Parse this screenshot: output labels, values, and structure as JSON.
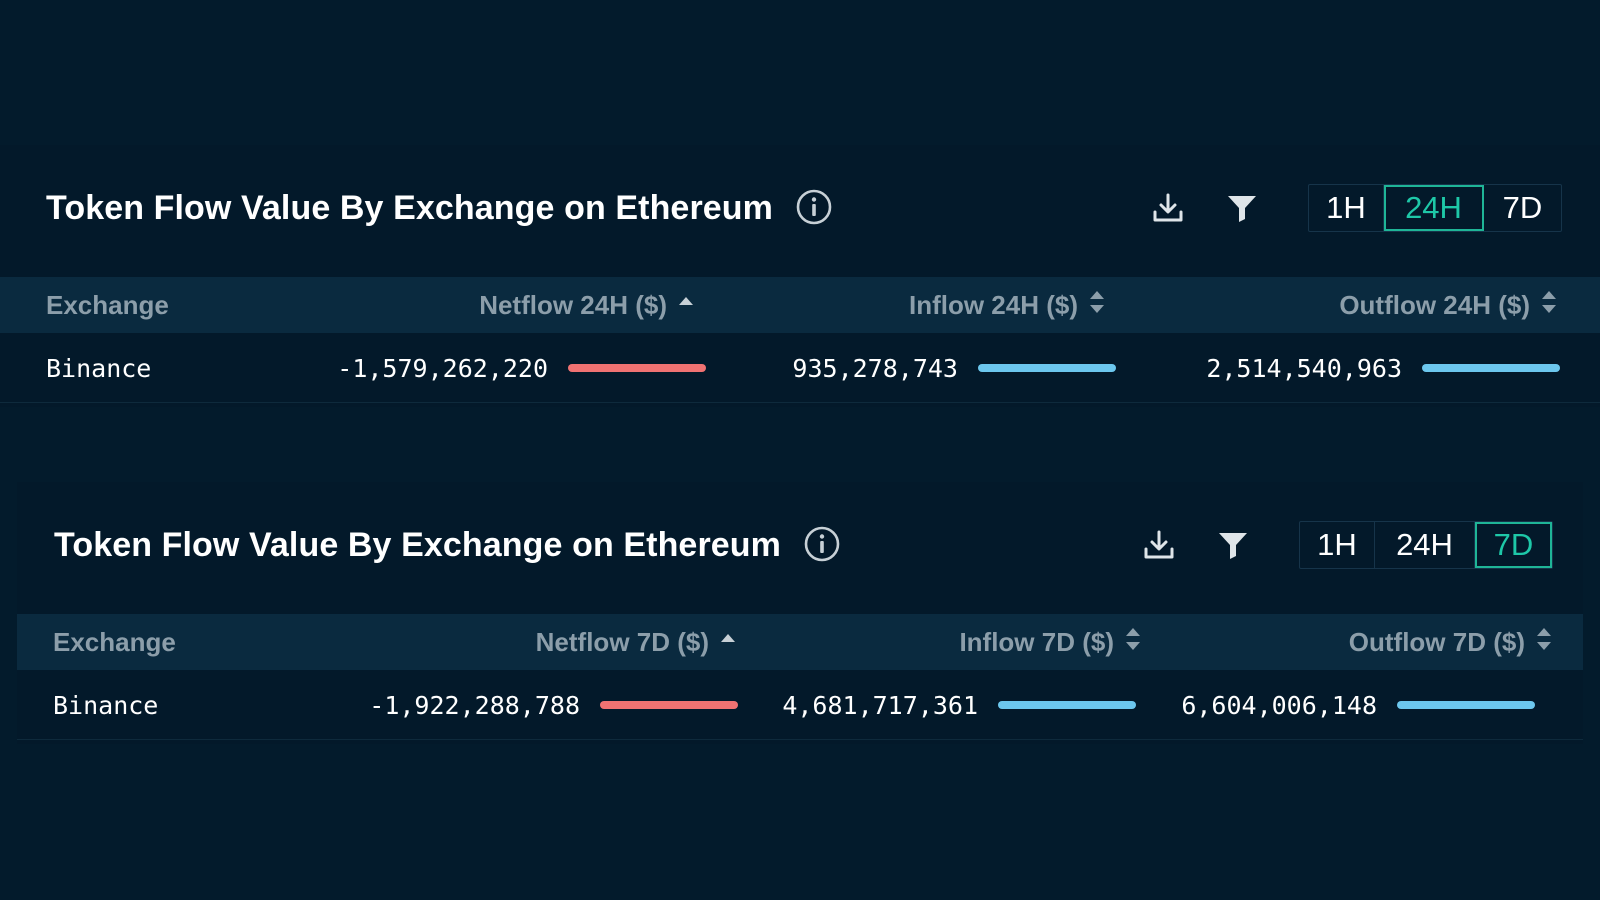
{
  "colors": {
    "background": "#031b2c",
    "panel": "#03192a",
    "table_header": "#0a2a3f",
    "accent_active": "#1ec8a8",
    "negative_bar": "#f07272",
    "positive_bar": "#6cc7ee",
    "header_text": "#8c9eaa"
  },
  "panels": [
    {
      "title": "Token Flow Value By Exchange on Ethereum",
      "time_options": [
        "1H",
        "24H",
        "7D"
      ],
      "active_time": "24H",
      "columns": {
        "exchange": "Exchange",
        "netflow": "Netflow 24H ($)",
        "inflow": "Inflow 24H ($)",
        "outflow": "Outflow 24H ($)"
      },
      "rows": [
        {
          "exchange": "Binance",
          "netflow": "-1,579,262,220",
          "inflow": "935,278,743",
          "outflow": "2,514,540,963",
          "netflow_bar_fraction": 1.0,
          "inflow_bar_fraction": 1.0,
          "outflow_bar_fraction": 1.0
        }
      ]
    },
    {
      "title": "Token Flow Value By Exchange on Ethereum",
      "time_options": [
        "1H",
        "24H",
        "7D"
      ],
      "active_time": "7D",
      "columns": {
        "exchange": "Exchange",
        "netflow": "Netflow 7D ($)",
        "inflow": "Inflow 7D ($)",
        "outflow": "Outflow 7D ($)"
      },
      "rows": [
        {
          "exchange": "Binance",
          "netflow": "-1,922,288,788",
          "inflow": "4,681,717,361",
          "outflow": "6,604,006,148",
          "netflow_bar_fraction": 1.0,
          "inflow_bar_fraction": 1.0,
          "outflow_bar_fraction": 1.0
        }
      ]
    }
  ]
}
